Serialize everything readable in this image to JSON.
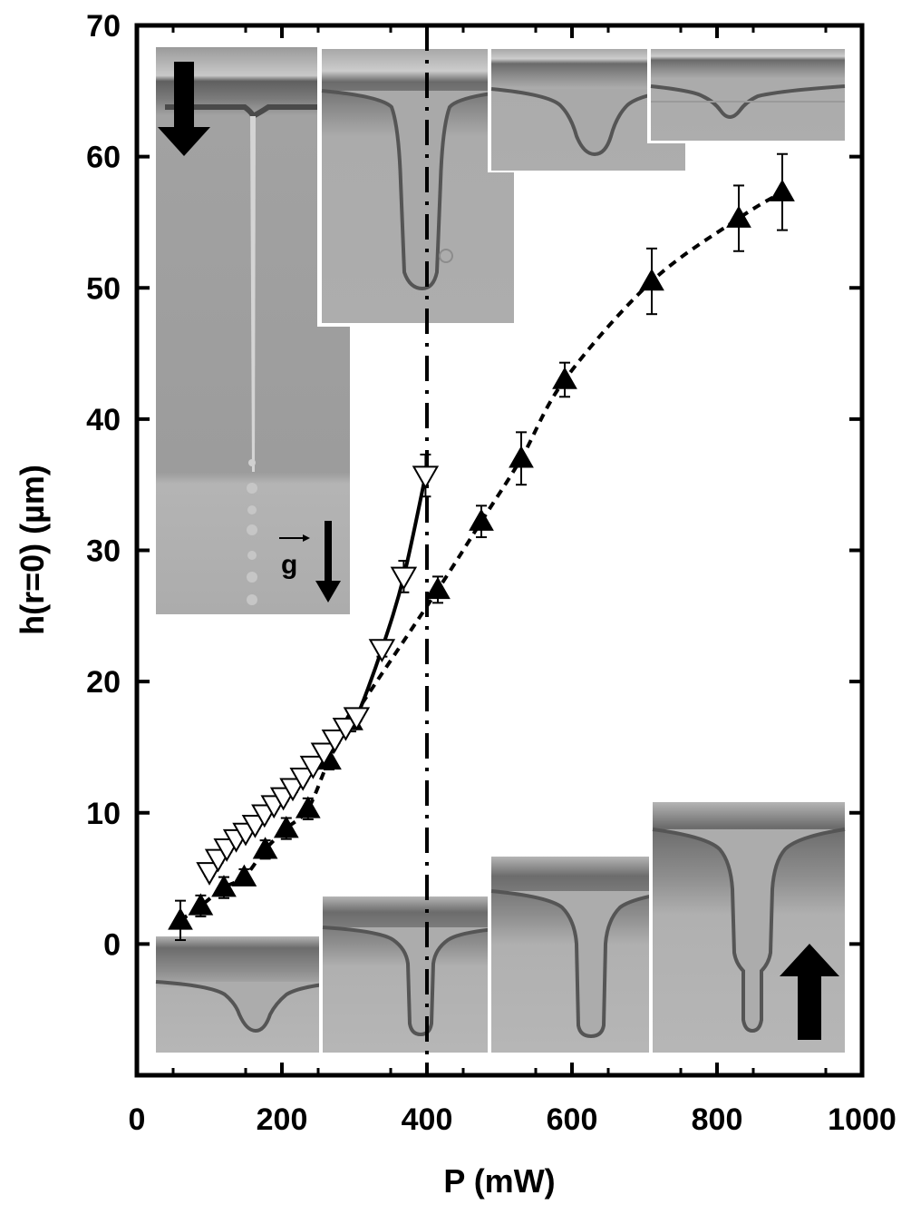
{
  "chart_data": {
    "type": "scatter",
    "xlabel": "P (mW)",
    "ylabel": "h(r=0) (µm)",
    "xlim": [
      0,
      1000
    ],
    "ylim": [
      -10,
      70
    ],
    "xticks": [
      "0",
      "200",
      "400",
      "600",
      "800",
      "1000"
    ],
    "yticks": [
      "0",
      "10",
      "20",
      "30",
      "40",
      "50",
      "60",
      "70"
    ],
    "grid": false,
    "vertical_line_x": 400,
    "inset_label": "g",
    "series": [
      {
        "marker": "filled-triangle-up",
        "color": "#000000",
        "line": "dashed",
        "points": [
          {
            "x": 60,
            "y": 1.8,
            "err": 1.5
          },
          {
            "x": 88,
            "y": 2.9,
            "err": 0.8
          },
          {
            "x": 120,
            "y": 4.3,
            "err": 0.8
          },
          {
            "x": 148,
            "y": 5.1,
            "err": 0.6
          },
          {
            "x": 177,
            "y": 7.2,
            "err": 0.7
          },
          {
            "x": 206,
            "y": 8.8,
            "err": 0.8
          },
          {
            "x": 236,
            "y": 10.3,
            "err": 0.8
          },
          {
            "x": 265,
            "y": 14.0,
            "err": 0.7
          },
          {
            "x": 295,
            "y": 17.0,
            "err": 0.8
          },
          {
            "x": 415,
            "y": 27.0,
            "err": 1.0
          },
          {
            "x": 475,
            "y": 32.2,
            "err": 1.2
          },
          {
            "x": 530,
            "y": 37.0,
            "err": 2.0
          },
          {
            "x": 590,
            "y": 43.0,
            "err": 1.3
          },
          {
            "x": 710,
            "y": 50.5,
            "err": 2.5
          },
          {
            "x": 830,
            "y": 55.3,
            "err": 2.5
          },
          {
            "x": 890,
            "y": 57.3,
            "err": 2.9
          }
        ]
      },
      {
        "marker": "open-triangle-down",
        "color": "#000000",
        "line": "solid",
        "points": [
          {
            "x": 100,
            "y": 5.5,
            "err": 0.3
          },
          {
            "x": 112,
            "y": 6.5,
            "err": 0.3
          },
          {
            "x": 124,
            "y": 7.3,
            "err": 0.3
          },
          {
            "x": 137,
            "y": 8.0,
            "err": 0.3
          },
          {
            "x": 150,
            "y": 8.5,
            "err": 0.3
          },
          {
            "x": 163,
            "y": 9.1,
            "err": 0.3
          },
          {
            "x": 176,
            "y": 9.9,
            "err": 0.3
          },
          {
            "x": 189,
            "y": 10.6,
            "err": 0.3
          },
          {
            "x": 202,
            "y": 11.2,
            "err": 0.3
          },
          {
            "x": 215,
            "y": 11.9,
            "err": 0.3
          },
          {
            "x": 229,
            "y": 12.7,
            "err": 0.3
          },
          {
            "x": 243,
            "y": 13.6,
            "err": 0.3
          },
          {
            "x": 258,
            "y": 14.6,
            "err": 0.3
          },
          {
            "x": 273,
            "y": 15.6,
            "err": 0.3
          },
          {
            "x": 288,
            "y": 16.5,
            "err": 0.3
          },
          {
            "x": 303,
            "y": 17.3,
            "err": 0.3
          },
          {
            "x": 338,
            "y": 22.5,
            "err": 0.6
          },
          {
            "x": 368,
            "y": 28.0,
            "err": 1.2
          },
          {
            "x": 398,
            "y": 35.7,
            "err": 1.6
          }
        ]
      }
    ]
  }
}
